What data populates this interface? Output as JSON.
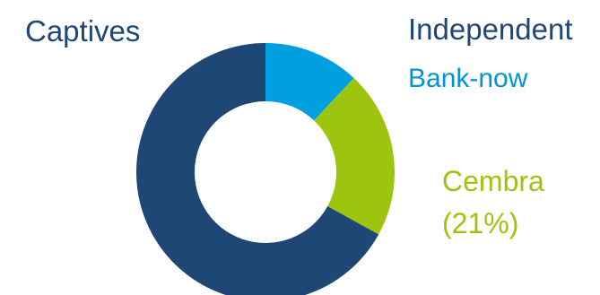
{
  "chart_data": {
    "type": "pie",
    "title": "",
    "labels": {
      "captives": "Captives",
      "independent": "Independent",
      "bank_now": "Bank-now",
      "cembra": "Cembra",
      "cembra_pct": "(21%)"
    },
    "slices": [
      {
        "label": "Bank-now",
        "value": 12,
        "color": "#009fe0"
      },
      {
        "label": "Cembra",
        "value": 21,
        "color": "#9dc40f"
      },
      {
        "label": "Captives",
        "value": 67,
        "color": "#1f4776"
      }
    ],
    "colors": {
      "captives_text": "#1f4776",
      "independent_text": "#1f4776",
      "bank_now_text": "#0093d5",
      "cembra_text": "#9dc40f"
    }
  }
}
